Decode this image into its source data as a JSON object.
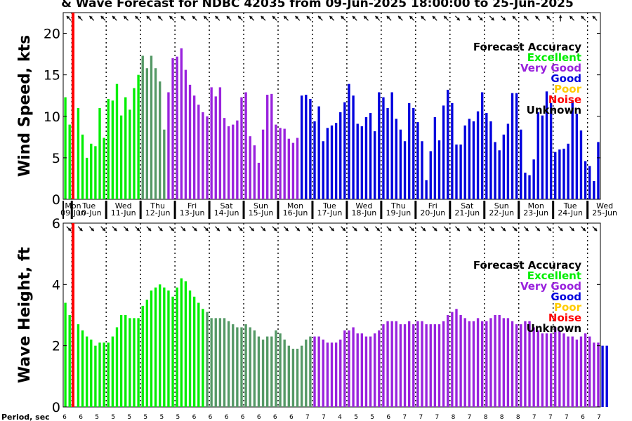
{
  "title": "& Wave Forecast for NDBC 42035 from 09-Jun-2025 18:00:00 to 25-Jun-2025",
  "period_label": "Period, sec",
  "periods": [
    6,
    6,
    5,
    5,
    5,
    5,
    5,
    5,
    6,
    6,
    6,
    6,
    6,
    6,
    6,
    7,
    7,
    4,
    5,
    5,
    6,
    7,
    7,
    7,
    8,
    7,
    8,
    8,
    8,
    7,
    7,
    7,
    6,
    7
  ],
  "days": [
    {
      "dow": "Mon",
      "date": "09-Jun"
    },
    {
      "dow": "Tue",
      "date": "10-Jun"
    },
    {
      "dow": "Wed",
      "date": "11-Jun"
    },
    {
      "dow": "Thu",
      "date": "12-Jun"
    },
    {
      "dow": "Fri",
      "date": "13-Jun"
    },
    {
      "dow": "Sat",
      "date": "14-Jun"
    },
    {
      "dow": "Sun",
      "date": "15-Jun"
    },
    {
      "dow": "Mon",
      "date": "16-Jun"
    },
    {
      "dow": "Tue",
      "date": "17-Jun"
    },
    {
      "dow": "Wed",
      "date": "18-Jun"
    },
    {
      "dow": "Thu",
      "date": "19-Jun"
    },
    {
      "dow": "Fri",
      "date": "20-Jun"
    },
    {
      "dow": "Sat",
      "date": "21-Jun"
    },
    {
      "dow": "Sun",
      "date": "22-Jun"
    },
    {
      "dow": "Mon",
      "date": "23-Jun"
    },
    {
      "dow": "Tue",
      "date": "24-Jun"
    },
    {
      "dow": "Wed",
      "date": "25-Jun"
    }
  ],
  "legend": {
    "title": "Forecast Accuracy",
    "items": [
      {
        "label": "Excellent",
        "color": "#00ee00"
      },
      {
        "label": "Very Good",
        "color": "#9922dd"
      },
      {
        "label": "Good",
        "color": "#0000dd"
      },
      {
        "label": "Poor",
        "color": "#ffcc00"
      },
      {
        "label": "Noise",
        "color": "#ff0000"
      },
      {
        "label": "Unknown",
        "color": "#000000"
      }
    ]
  },
  "colors": {
    "excellent": "#00ee00",
    "transition": "#559966",
    "very_good": "#9922dd",
    "good": "#0000dd",
    "now_line": "#ff0000"
  },
  "chart_data": [
    {
      "type": "bar",
      "ylabel": "Wind Speed, kts",
      "ylim": [
        0,
        22.5
      ],
      "yticks": [
        0,
        5,
        10,
        15,
        20
      ],
      "x_start": "2025-06-09",
      "x_step_hours": 3,
      "values": [
        12.3,
        9.0,
        0,
        11.0,
        7.8,
        5.0,
        6.7,
        6.4,
        11.0,
        7.4,
        12.1,
        11.9,
        13.9,
        10.1,
        12.3,
        10.8,
        13.4,
        15.0,
        17.3,
        15.8,
        17.3,
        15.8,
        14.2,
        8.4,
        12.9,
        17.0,
        17.2,
        18.2,
        15.6,
        13.8,
        12.5,
        11.4,
        10.5,
        10.0,
        13.5,
        12.4,
        13.5,
        9.8,
        8.8,
        9.0,
        9.5,
        12.3,
        12.9,
        7.6,
        6.5,
        4.4,
        8.4,
        12.6,
        12.7,
        9.0,
        8.6,
        8.5,
        7.3,
        6.8,
        7.4,
        12.5,
        12.6,
        12.1,
        9.4,
        11.2,
        7.0,
        8.6,
        8.9,
        9.2,
        10.5,
        11.7,
        13.9,
        12.5,
        9.1,
        8.8,
        9.9,
        10.4,
        8.2,
        12.9,
        12.3,
        11.0,
        12.9,
        9.7,
        8.4,
        7.0,
        11.6,
        11.0,
        9.3,
        7.0,
        2.3,
        5.8,
        9.9,
        7.1,
        11.3,
        13.2,
        11.6,
        6.6,
        6.6,
        8.9,
        9.7,
        9.4,
        10.6,
        12.9,
        10.4,
        9.4,
        6.9,
        5.9,
        7.8,
        9.1,
        12.8,
        12.8,
        8.4,
        3.2,
        2.9,
        4.8,
        10.5,
        10.1,
        13.0,
        11.6,
        5.7,
        6.0,
        6.1,
        6.7,
        11.9,
        10.3,
        8.3,
        4.6,
        4.0,
        2.2,
        6.9
      ],
      "accuracy_segments": [
        {
          "from": 0,
          "to": 18,
          "class": "excellent"
        },
        {
          "from": 18,
          "to": 24,
          "class": "transition"
        },
        {
          "from": 24,
          "to": 55,
          "class": "very_good"
        },
        {
          "from": 55,
          "to": 125,
          "class": "good"
        }
      ],
      "wind_dir_deg": [
        135,
        135,
        135,
        135,
        135,
        135,
        135,
        135,
        135,
        135,
        135,
        135,
        135,
        135,
        135,
        135,
        135,
        135,
        135,
        135,
        135,
        135,
        135,
        135,
        135,
        135,
        135,
        135,
        135,
        135,
        135,
        135,
        135,
        135,
        315,
        315,
        315,
        315,
        315,
        135,
        135,
        135,
        135,
        90,
        135,
        135,
        135
      ]
    },
    {
      "type": "bar",
      "ylabel": "Wave Height, ft",
      "ylim": [
        0,
        6
      ],
      "yticks": [
        0,
        2,
        4,
        6
      ],
      "x_start": "2025-06-09",
      "x_step_hours": 3,
      "values": [
        3.4,
        3.0,
        0,
        2.7,
        2.5,
        2.3,
        2.2,
        2.0,
        2.1,
        2.1,
        2.1,
        2.3,
        2.6,
        3.0,
        3.0,
        2.9,
        2.9,
        2.9,
        3.3,
        3.5,
        3.8,
        3.9,
        4.0,
        3.9,
        3.8,
        3.6,
        3.9,
        4.2,
        4.1,
        3.8,
        3.6,
        3.4,
        3.2,
        3.1,
        2.9,
        2.9,
        2.9,
        2.9,
        2.8,
        2.7,
        2.6,
        2.6,
        2.7,
        2.6,
        2.5,
        2.3,
        2.2,
        2.3,
        2.3,
        2.5,
        2.4,
        2.2,
        2.0,
        1.9,
        1.9,
        2.0,
        2.2,
        2.3,
        2.3,
        2.3,
        2.2,
        2.1,
        2.1,
        2.1,
        2.2,
        2.5,
        2.5,
        2.6,
        2.4,
        2.4,
        2.3,
        2.3,
        2.4,
        2.5,
        2.7,
        2.8,
        2.8,
        2.8,
        2.7,
        2.7,
        2.8,
        2.7,
        2.8,
        2.8,
        2.7,
        2.7,
        2.7,
        2.7,
        2.8,
        3.0,
        3.1,
        3.2,
        3.0,
        2.9,
        2.8,
        2.8,
        2.9,
        2.8,
        2.8,
        2.9,
        3.0,
        3.0,
        2.9,
        2.9,
        2.8,
        2.7,
        2.7,
        2.8,
        2.8,
        2.6,
        2.5,
        2.4,
        2.4,
        2.4,
        2.6,
        2.5,
        2.4,
        2.3,
        2.3,
        2.2,
        2.3,
        2.4,
        2.3,
        2.1,
        2.1,
        2.0,
        2.0
      ],
      "accuracy_segments": [
        {
          "from": 0,
          "to": 33,
          "class": "excellent"
        },
        {
          "from": 33,
          "to": 58,
          "class": "transition"
        },
        {
          "from": 58,
          "to": 125,
          "class": "very_good"
        }
      ],
      "wave_dir_deg": [
        315,
        315,
        315,
        315,
        315,
        315,
        315,
        315,
        315,
        315,
        315,
        315,
        315,
        315,
        315,
        315,
        315,
        315,
        315,
        315,
        315,
        315,
        315,
        315,
        315,
        315,
        315,
        315,
        315,
        315,
        315,
        315,
        315,
        315,
        315,
        315,
        315,
        315,
        315,
        315,
        315,
        315,
        315,
        315,
        315,
        315,
        315
      ]
    }
  ]
}
